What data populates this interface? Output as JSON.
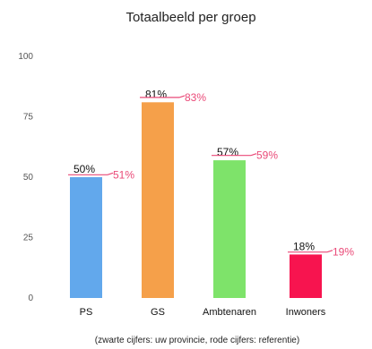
{
  "chart_data": {
    "type": "bar",
    "title": "Totaalbeeld per groep",
    "categories": [
      "PS",
      "GS",
      "Ambtenaren",
      "Inwoners"
    ],
    "series": [
      {
        "values": [
          50,
          81,
          57,
          18
        ]
      }
    ],
    "reference_values": [
      51,
      83,
      59,
      19
    ],
    "value_labels": [
      "50%",
      "81%",
      "57%",
      "18%"
    ],
    "reference_labels": [
      "51%",
      "83%",
      "59%",
      "19%"
    ],
    "yticks": [
      "0",
      "25",
      "50",
      "75",
      "100"
    ],
    "ylim": [
      0,
      100
    ],
    "bar_colors": [
      "#62a8ec",
      "#f5a04a",
      "#7ee36a",
      "#f7144f"
    ],
    "reference_color": "#ea4a78",
    "grid": false,
    "footnote": "(zwarte cijfers: uw provincie, rode cijfers: referentie)"
  }
}
